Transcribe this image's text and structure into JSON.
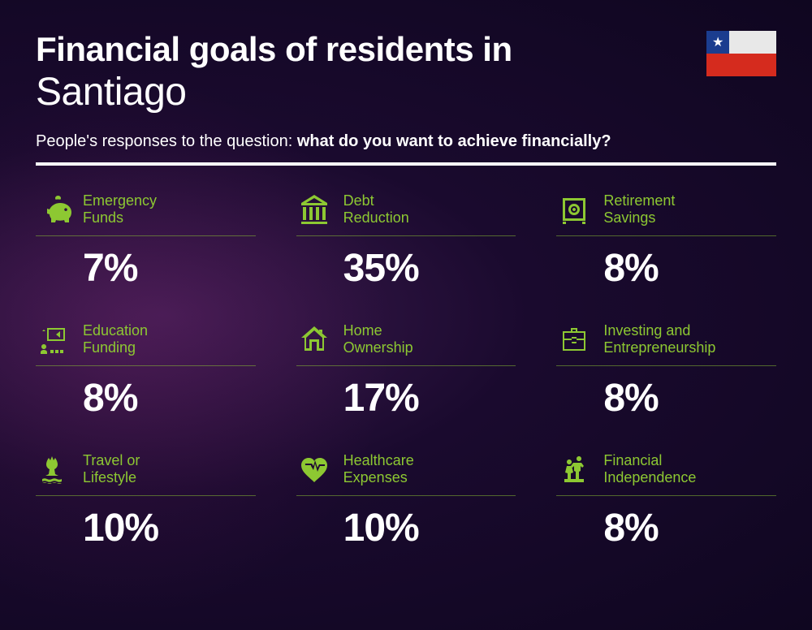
{
  "header": {
    "title_line1": "Financial goals of residents in",
    "title_line2": "Santiago",
    "subtitle_prefix": "People's responses to the question: ",
    "subtitle_bold": "what do you want to achieve financially?"
  },
  "flag": {
    "country": "Chile",
    "star": "★",
    "colors": {
      "blue": "#1b3d8f",
      "white": "#e8e8e8",
      "red": "#d52b1e"
    }
  },
  "styling": {
    "background_gradient": [
      "#3d1a4f",
      "#1a0a2e",
      "#0f0620"
    ],
    "accent_color": "#8dc832",
    "text_color": "#ffffff",
    "title_fontsize": 42,
    "city_fontsize": 48,
    "subtitle_fontsize": 20,
    "label_fontsize": 18,
    "value_fontsize": 48,
    "divider_height": 4,
    "grid_columns": 3,
    "grid_rows": 3
  },
  "items": [
    {
      "icon": "piggy-bank",
      "label": "Emergency\nFunds",
      "value": "7%"
    },
    {
      "icon": "bank",
      "label": "Debt\nReduction",
      "value": "35%"
    },
    {
      "icon": "safe",
      "label": "Retirement\nSavings",
      "value": "8%"
    },
    {
      "icon": "education",
      "label": "Education\nFunding",
      "value": "8%"
    },
    {
      "icon": "home",
      "label": "Home\nOwnership",
      "value": "17%"
    },
    {
      "icon": "briefcase",
      "label": "Investing and\nEntrepreneurship",
      "value": "8%"
    },
    {
      "icon": "travel",
      "label": "Travel or\nLifestyle",
      "value": "10%"
    },
    {
      "icon": "healthcare",
      "label": "Healthcare\nExpenses",
      "value": "10%"
    },
    {
      "icon": "independence",
      "label": "Financial\nIndependence",
      "value": "8%"
    }
  ]
}
